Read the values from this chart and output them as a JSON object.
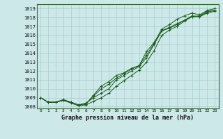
{
  "title": "Graphe pression niveau de la mer (hPa)",
  "bg_color": "#cce8e8",
  "grid_color": "#aacccc",
  "line_color": "#1a5c1a",
  "xlim": [
    -0.5,
    23.5
  ],
  "ylim": [
    1007.8,
    1019.5
  ],
  "xticks": [
    0,
    1,
    2,
    3,
    4,
    5,
    6,
    7,
    8,
    9,
    10,
    11,
    12,
    13,
    14,
    15,
    16,
    17,
    18,
    19,
    20,
    21,
    22,
    23
  ],
  "yticks": [
    1008,
    1009,
    1010,
    1011,
    1012,
    1013,
    1014,
    1015,
    1016,
    1017,
    1018,
    1019
  ],
  "series": [
    [
      1009.0,
      1008.5,
      1008.5,
      1008.7,
      1008.5,
      1008.2,
      1008.3,
      1009.3,
      1010.3,
      1010.8,
      1011.5,
      1011.8,
      1012.3,
      1012.6,
      1014.2,
      1015.2,
      1016.7,
      1017.2,
      1017.8,
      1018.2,
      1018.5,
      1018.3,
      1018.8,
      1019.0
    ],
    [
      1009.0,
      1008.5,
      1008.5,
      1008.8,
      1008.5,
      1008.2,
      1008.4,
      1009.0,
      1009.5,
      1010.0,
      1011.0,
      1011.5,
      1012.0,
      1012.5,
      1013.5,
      1015.0,
      1016.5,
      1016.8,
      1017.2,
      1017.7,
      1018.1,
      1018.2,
      1018.7,
      1018.8
    ],
    [
      1009.0,
      1008.5,
      1008.5,
      1008.7,
      1008.5,
      1008.2,
      1008.3,
      1009.2,
      1010.0,
      1010.5,
      1011.2,
      1011.7,
      1012.2,
      1012.6,
      1013.8,
      1015.1,
      1016.5,
      1016.9,
      1017.3,
      1017.7,
      1018.2,
      1018.1,
      1018.6,
      1018.8
    ],
    [
      1009.0,
      1008.5,
      1008.5,
      1008.7,
      1008.4,
      1008.1,
      1008.2,
      1008.6,
      1009.0,
      1009.5,
      1010.3,
      1010.9,
      1011.5,
      1012.1,
      1013.0,
      1014.3,
      1016.0,
      1016.6,
      1017.0,
      1017.6,
      1018.1,
      1018.1,
      1018.5,
      1018.7
    ]
  ]
}
